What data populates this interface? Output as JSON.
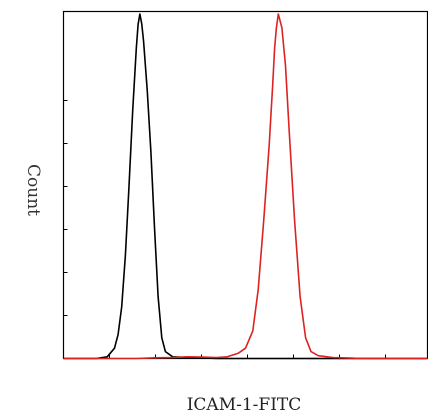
{
  "chart_data": {
    "type": "line",
    "title": "",
    "xlabel": "ICAM-1-FITC",
    "ylabel": "Count",
    "xlim": [
      0,
      100
    ],
    "ylim": [
      0,
      100
    ],
    "grid": false,
    "legend": "none",
    "series": [
      {
        "color": "#000000",
        "x": [
          0,
          5,
          9,
          12,
          14,
          15,
          16,
          17,
          18,
          19,
          20,
          20.5,
          21,
          21.5,
          22,
          23,
          24,
          25,
          26,
          27,
          28,
          30,
          34,
          38,
          42,
          46,
          50,
          55,
          60,
          65,
          70,
          75,
          80,
          85,
          90,
          95,
          100
        ],
        "y": [
          0,
          0,
          0,
          0.5,
          3,
          7,
          15,
          30,
          50,
          72,
          90,
          97,
          100,
          97,
          92,
          78,
          60,
          38,
          18,
          6,
          2,
          0.5,
          0.3,
          0.2,
          0,
          0,
          0,
          0,
          0,
          0,
          0,
          0,
          0,
          0,
          0,
          0,
          0
        ]
      },
      {
        "color": "#dd2222",
        "x": [
          0,
          10,
          20,
          25,
          30,
          34,
          38,
          42,
          45,
          48,
          50,
          52,
          53.5,
          55,
          56.5,
          57.5,
          58,
          58.5,
          59,
          60,
          61,
          62,
          63.5,
          65,
          66.5,
          68,
          70,
          74,
          80,
          90,
          100
        ],
        "y": [
          0,
          0,
          0,
          0.2,
          0.3,
          0.5,
          0.4,
          0.3,
          0.5,
          1.5,
          3,
          8,
          20,
          40,
          62,
          80,
          90,
          96,
          100,
          96,
          85,
          66,
          40,
          18,
          6,
          2,
          0.8,
          0.3,
          0.1,
          0,
          0
        ]
      }
    ]
  }
}
